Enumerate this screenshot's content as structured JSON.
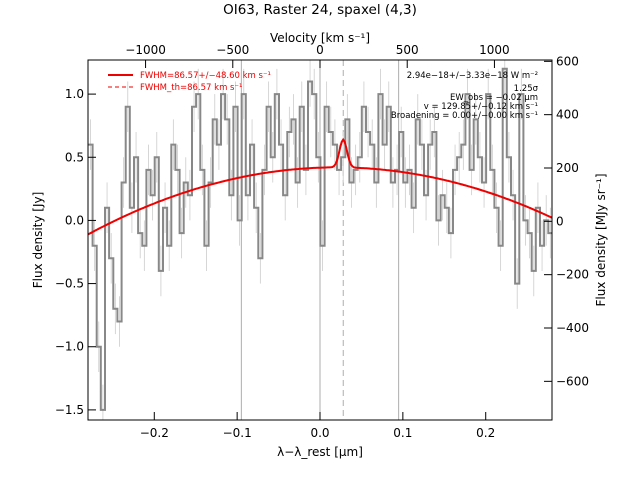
{
  "chart_data": {
    "type": "line",
    "title": "OI63, Raster 24, spaxel (4,3)",
    "xlabel": "λ−λ_rest [μm]",
    "ylabel": "Flux density [Jy]",
    "top_xlabel": "Velocity [km s⁻¹]",
    "right_ylabel": "Flux density [MJy sr⁻¹]",
    "xlim": [
      -0.28,
      0.28
    ],
    "ylim": [
      -1.58,
      1.27
    ],
    "top_xlim": [
      -1330,
      1330
    ],
    "right_ylim": [
      -745,
      605
    ],
    "x_ticks": [
      -0.2,
      -0.1,
      0.0,
      0.1,
      0.2
    ],
    "x_tick_labels": [
      "−0.2",
      "−0.1",
      "0.0",
      "0.1",
      "0.2"
    ],
    "y_ticks": [
      -1.5,
      -1.0,
      -0.5,
      0.0,
      0.5,
      1.0
    ],
    "y_tick_labels": [
      "−1.5",
      "−1.0",
      "−0.5",
      "0.0",
      "0.5",
      "1.0"
    ],
    "top_ticks": [
      -1000,
      -500,
      0,
      500,
      1000
    ],
    "top_tick_labels": [
      "−1000",
      "−500",
      "0",
      "500",
      "1000"
    ],
    "right_ticks": [
      -600,
      -400,
      -200,
      0,
      200,
      400,
      600
    ],
    "right_tick_labels": [
      "−600",
      "−400",
      "−200",
      "0",
      "200",
      "400",
      "600"
    ],
    "vertical_lines": [
      -0.095,
      0.0,
      0.095
    ],
    "line_center": 0.028,
    "legend": [
      {
        "label": "FWHM=86.57+/−48.60 km s⁻¹",
        "style": "solid",
        "color": "#ee0000"
      },
      {
        "label": "FWHM_th=86.57 km s⁻¹",
        "style": "dashed",
        "color": "#ee0000"
      }
    ],
    "annotations": [
      "2.94e−18+/−3.33e−18 W m⁻²",
      "1.25σ",
      "EW_obs = −0.02 μm",
      "v = 129.85+/−0.12 km s⁻¹",
      "Broadening = 0.00+/−0.00 km s⁻¹"
    ],
    "series": [
      {
        "name": "spectrum",
        "color": "#888888",
        "step": true,
        "x": [
          -0.277,
          -0.272,
          -0.267,
          -0.262,
          -0.257,
          -0.252,
          -0.247,
          -0.242,
          -0.237,
          -0.232,
          -0.227,
          -0.222,
          -0.217,
          -0.212,
          -0.207,
          -0.202,
          -0.197,
          -0.192,
          -0.187,
          -0.182,
          -0.177,
          -0.172,
          -0.167,
          -0.162,
          -0.157,
          -0.152,
          -0.147,
          -0.142,
          -0.137,
          -0.132,
          -0.127,
          -0.122,
          -0.117,
          -0.112,
          -0.107,
          -0.102,
          -0.097,
          -0.092,
          -0.087,
          -0.082,
          -0.077,
          -0.072,
          -0.067,
          -0.062,
          -0.057,
          -0.052,
          -0.047,
          -0.042,
          -0.037,
          -0.032,
          -0.027,
          -0.022,
          -0.017,
          -0.012,
          -0.007,
          -0.002,
          0.003,
          0.008,
          0.013,
          0.018,
          0.023,
          0.028,
          0.033,
          0.038,
          0.043,
          0.048,
          0.053,
          0.058,
          0.063,
          0.068,
          0.073,
          0.078,
          0.083,
          0.088,
          0.093,
          0.098,
          0.103,
          0.108,
          0.113,
          0.118,
          0.123,
          0.128,
          0.133,
          0.138,
          0.143,
          0.148,
          0.153,
          0.158,
          0.163,
          0.168,
          0.173,
          0.178,
          0.183,
          0.188,
          0.193,
          0.198,
          0.203,
          0.208,
          0.213,
          0.218,
          0.223,
          0.228,
          0.233,
          0.238,
          0.243,
          0.248,
          0.253,
          0.258,
          0.263,
          0.268,
          0.273,
          0.278
        ],
        "y": [
          0.6,
          -0.2,
          -1.0,
          -1.5,
          0.1,
          -0.3,
          -0.7,
          -0.8,
          0.3,
          0.9,
          0.1,
          0.5,
          -0.1,
          -0.2,
          0.4,
          0.2,
          0.5,
          -0.4,
          0.1,
          -0.2,
          0.6,
          0.4,
          -0.1,
          0.3,
          0.2,
          0.9,
          1.0,
          0.4,
          -0.2,
          0.3,
          0.8,
          0.6,
          1.0,
          0.8,
          0.2,
          0.9,
          0.0,
          1.0,
          0.2,
          0.6,
          0.1,
          -0.3,
          0.4,
          0.9,
          0.5,
          1.0,
          0.6,
          0.2,
          0.7,
          0.8,
          0.3,
          0.9,
          0.4,
          1.1,
          1.0,
          0.5,
          -0.2,
          0.9,
          0.7,
          0.6,
          0.4,
          0.5,
          0.8,
          0.3,
          0.4,
          0.5,
          0.9,
          0.7,
          0.6,
          0.3,
          1.0,
          0.6,
          0.9,
          0.3,
          0.4,
          0.7,
          0.3,
          0.4,
          0.1,
          0.8,
          0.6,
          0.2,
          0.6,
          0.7,
          0.0,
          0.2,
          0.1,
          -0.1,
          0.4,
          0.5,
          0.6,
          1.0,
          0.4,
          0.8,
          0.5,
          0.3,
          1.0,
          0.4,
          0.1,
          -0.2,
          1.2,
          0.5,
          0.2,
          -0.5,
          1.0,
          0.0,
          -0.1,
          -0.4,
          0.1,
          -0.2,
          0.0,
          -0.1
        ],
        "err": 0.2
      },
      {
        "name": "fit",
        "color": "#ee0000",
        "baseline": {
          "a": 0.42,
          "center": 0.02,
          "b": 5.9
        },
        "gaussian": {
          "amplitude": 0.22,
          "center": 0.028,
          "sigma": 0.0045
        }
      }
    ]
  }
}
